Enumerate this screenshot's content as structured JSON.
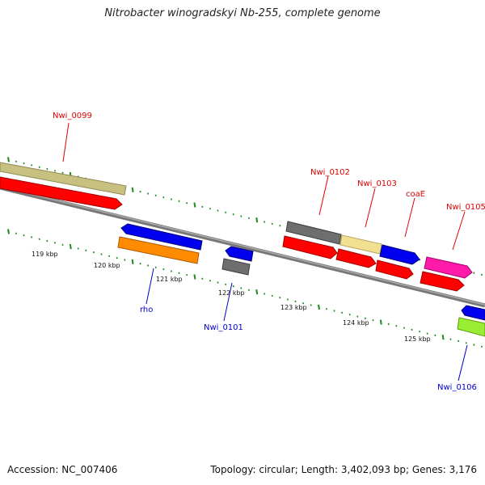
{
  "title": "Nitrobacter winogradskyi Nb-255, complete genome",
  "footer": {
    "accession": "Accession: NC_007406",
    "summary": "Topology: circular; Length: 3,402,093 bp; Genes: 3,176"
  },
  "colors": {
    "backbone": "#8c8c8c",
    "tick": "#1f8a1f",
    "label_forward": "#dd0000",
    "label_reverse": "#0000cc"
  },
  "scale_labels": [
    "119 kbp",
    "120 kbp",
    "121 kbp",
    "122 kbp",
    "123 kbp",
    "124 kbp",
    "125 kbp"
  ],
  "gene_labels": {
    "nwi_0099": "Nwi_0099",
    "nwi_0102": "Nwi_0102",
    "nwi_0103": "Nwi_0103",
    "coae": "coaE",
    "nwi_0105": "Nwi_0105",
    "rho": "rho",
    "nwi_0101": "Nwi_0101",
    "nwi_0106": "Nwi_0106"
  },
  "feature_colors": {
    "tan": "#c8c080",
    "red": "#ff0000",
    "gray": "#6e6e6e",
    "beige": "#f0e090",
    "blue": "#0000ee",
    "pink": "#ff1aaa",
    "orange": "#ff8c00",
    "green": "#99ee33"
  }
}
